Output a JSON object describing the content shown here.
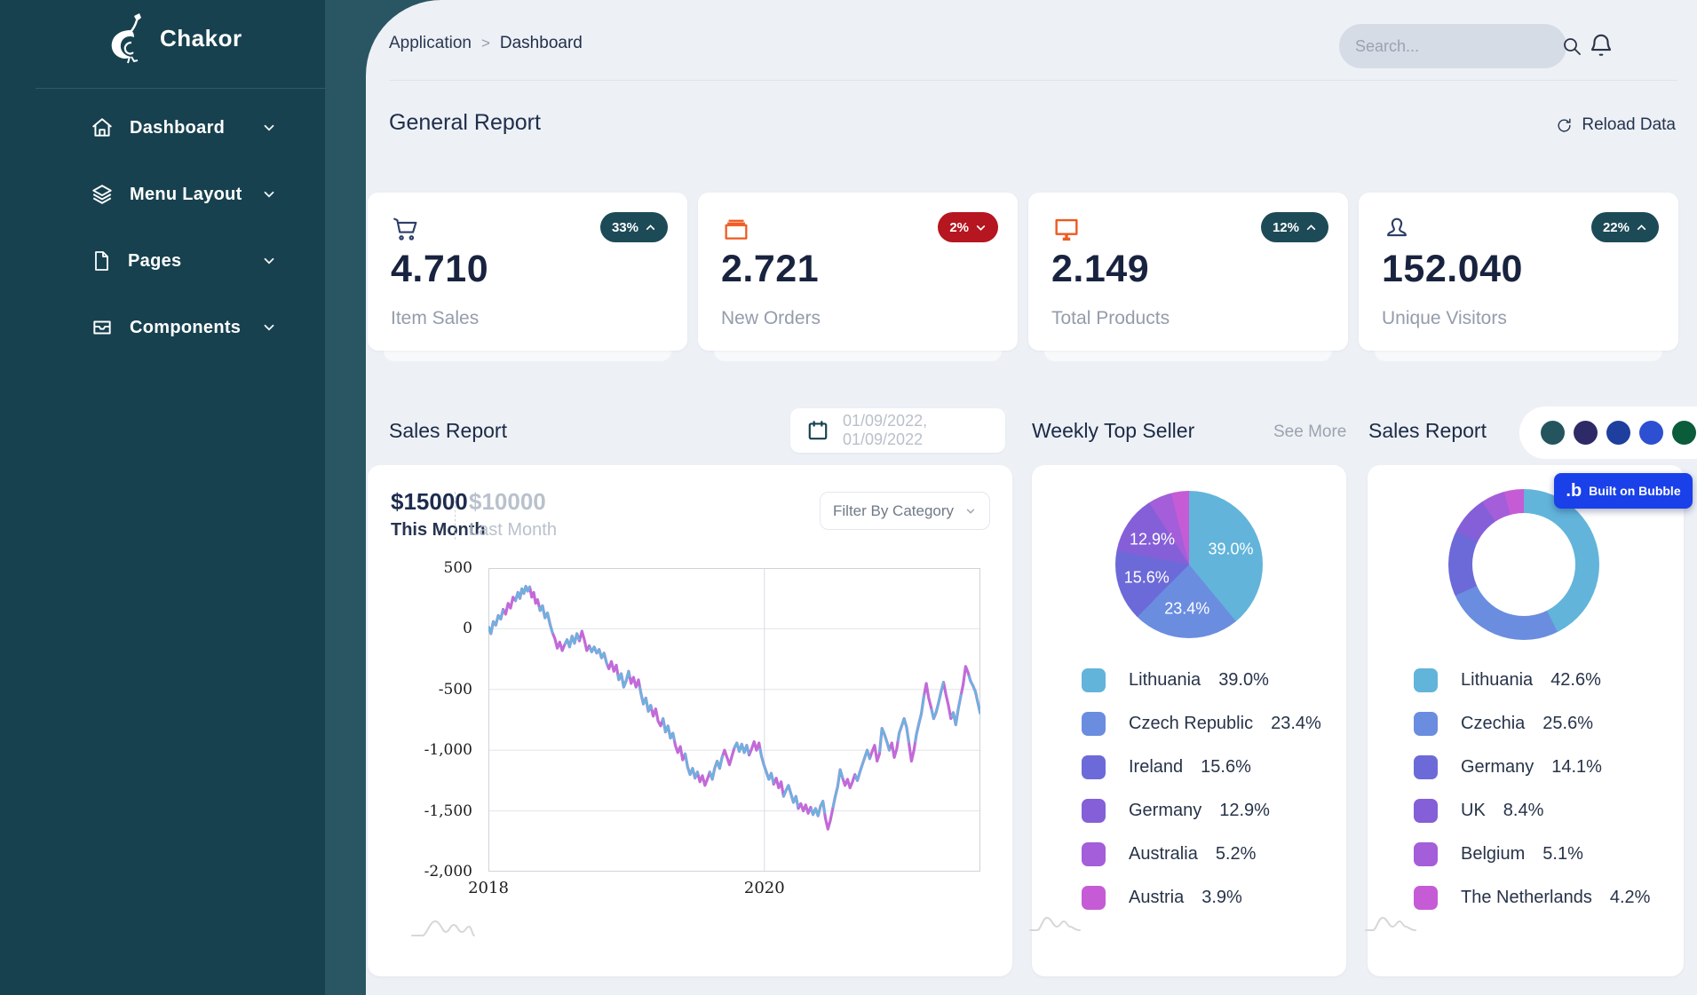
{
  "brand": {
    "name": "Chakor"
  },
  "sidebar": {
    "items": [
      {
        "label": "Dashboard"
      },
      {
        "label": "Menu Layout"
      },
      {
        "label": "Pages"
      },
      {
        "label": "Components"
      }
    ]
  },
  "topbar": {
    "breadcrumb_parent": "Application",
    "breadcrumb_separator": ">",
    "breadcrumb_current": "Dashboard",
    "search_placeholder": "Search..."
  },
  "general": {
    "title": "General Report",
    "reload_label": "Reload Data"
  },
  "stats": [
    {
      "value": "4.710",
      "label": "Item Sales",
      "badge": "33%",
      "trend": "up"
    },
    {
      "value": "2.721",
      "label": "New Orders",
      "badge": "2%",
      "trend": "down"
    },
    {
      "value": "2.149",
      "label": "Total Products",
      "badge": "12%",
      "trend": "up"
    },
    {
      "value": "152.040",
      "label": "Unique Visitors",
      "badge": "22%",
      "trend": "up"
    }
  ],
  "sales_section": {
    "title": "Sales Report",
    "date_range": "01/09/2022, 01/09/2022",
    "this_month_value": "$15000",
    "this_month_label": "This Month",
    "last_month_value": "$10000",
    "last_month_label": "Last Month",
    "filter_placeholder": "Filter By Category"
  },
  "weekly_section": {
    "title": "Weekly Top Seller",
    "see_more": "See More"
  },
  "donut_section": {
    "title": "Sales Report"
  },
  "theme_dots": [
    "#24555e",
    "#2e2a67",
    "#1e3f9e",
    "#2d4fd2",
    "#0a5c3a"
  ],
  "bubble_badge": {
    "label": "Built on Bubble",
    "logo": ".b"
  },
  "chart_data": [
    {
      "type": "line",
      "title": "Sales Report",
      "series": [
        {
          "name": "This Month",
          "color": "#6ab4dd"
        },
        {
          "name": "Last Month",
          "color": "#c26ad8"
        }
      ],
      "ylim": [
        -2000,
        500
      ],
      "yticks": [
        500,
        0,
        -500,
        -1000,
        -1500,
        -2000
      ],
      "xticks": [
        {
          "label": "2018",
          "f": 0.0
        },
        {
          "label": "2020",
          "f": 0.561
        }
      ],
      "grid": true,
      "points": [
        [
          0.0,
          20
        ],
        [
          0.005,
          -40
        ],
        [
          0.01,
          60
        ],
        [
          0.015,
          30
        ],
        [
          0.02,
          110
        ],
        [
          0.025,
          80
        ],
        [
          0.03,
          160
        ],
        [
          0.035,
          120
        ],
        [
          0.04,
          210
        ],
        [
          0.045,
          170
        ],
        [
          0.05,
          260
        ],
        [
          0.055,
          230
        ],
        [
          0.06,
          300
        ],
        [
          0.064,
          250
        ],
        [
          0.068,
          330
        ],
        [
          0.072,
          290
        ],
        [
          0.076,
          350
        ],
        [
          0.08,
          310
        ],
        [
          0.084,
          345
        ],
        [
          0.088,
          260
        ],
        [
          0.092,
          300
        ],
        [
          0.096,
          210
        ],
        [
          0.1,
          240
        ],
        [
          0.105,
          150
        ],
        [
          0.11,
          190
        ],
        [
          0.115,
          90
        ],
        [
          0.12,
          130
        ],
        [
          0.125,
          40
        ],
        [
          0.13,
          -30
        ],
        [
          0.135,
          -80
        ],
        [
          0.14,
          -160
        ],
        [
          0.145,
          -110
        ],
        [
          0.15,
          -180
        ],
        [
          0.155,
          -130
        ],
        [
          0.16,
          -90
        ],
        [
          0.165,
          -150
        ],
        [
          0.17,
          -60
        ],
        [
          0.175,
          -120
        ],
        [
          0.18,
          -40
        ],
        [
          0.185,
          -100
        ],
        [
          0.19,
          -20
        ],
        [
          0.195,
          -90
        ],
        [
          0.2,
          -180
        ],
        [
          0.205,
          -140
        ],
        [
          0.21,
          -190
        ],
        [
          0.215,
          -150
        ],
        [
          0.22,
          -200
        ],
        [
          0.225,
          -170
        ],
        [
          0.23,
          -240
        ],
        [
          0.235,
          -200
        ],
        [
          0.24,
          -280
        ],
        [
          0.245,
          -330
        ],
        [
          0.25,
          -270
        ],
        [
          0.255,
          -350
        ],
        [
          0.26,
          -300
        ],
        [
          0.265,
          -420
        ],
        [
          0.27,
          -370
        ],
        [
          0.275,
          -480
        ],
        [
          0.28,
          -430
        ],
        [
          0.285,
          -350
        ],
        [
          0.29,
          -450
        ],
        [
          0.295,
          -400
        ],
        [
          0.3,
          -480
        ],
        [
          0.305,
          -420
        ],
        [
          0.31,
          -530
        ],
        [
          0.315,
          -620
        ],
        [
          0.32,
          -570
        ],
        [
          0.325,
          -680
        ],
        [
          0.33,
          -630
        ],
        [
          0.335,
          -720
        ],
        [
          0.34,
          -660
        ],
        [
          0.345,
          -760
        ],
        [
          0.35,
          -800
        ],
        [
          0.355,
          -740
        ],
        [
          0.36,
          -850
        ],
        [
          0.365,
          -800
        ],
        [
          0.37,
          -900
        ],
        [
          0.375,
          -860
        ],
        [
          0.38,
          -960
        ],
        [
          0.385,
          -1020
        ],
        [
          0.39,
          -970
        ],
        [
          0.395,
          -1080
        ],
        [
          0.4,
          -1030
        ],
        [
          0.405,
          -1140
        ],
        [
          0.41,
          -1200
        ],
        [
          0.415,
          -1150
        ],
        [
          0.42,
          -1230
        ],
        [
          0.425,
          -1180
        ],
        [
          0.43,
          -1260
        ],
        [
          0.435,
          -1210
        ],
        [
          0.44,
          -1290
        ],
        [
          0.445,
          -1240
        ],
        [
          0.45,
          -1180
        ],
        [
          0.455,
          -1240
        ],
        [
          0.46,
          -1150
        ],
        [
          0.465,
          -1090
        ],
        [
          0.47,
          -1150
        ],
        [
          0.475,
          -1060
        ],
        [
          0.48,
          -1000
        ],
        [
          0.485,
          -1060
        ],
        [
          0.49,
          -1120
        ],
        [
          0.495,
          -1050
        ],
        [
          0.5,
          -980
        ],
        [
          0.505,
          -940
        ],
        [
          0.51,
          -1010
        ],
        [
          0.515,
          -950
        ],
        [
          0.52,
          -1020
        ],
        [
          0.525,
          -960
        ],
        [
          0.53,
          -1040
        ],
        [
          0.535,
          -990
        ],
        [
          0.54,
          -930
        ],
        [
          0.545,
          -1000
        ],
        [
          0.55,
          -940
        ],
        [
          0.555,
          -1050
        ],
        [
          0.56,
          -1120
        ],
        [
          0.565,
          -1180
        ],
        [
          0.57,
          -1240
        ],
        [
          0.575,
          -1190
        ],
        [
          0.58,
          -1280
        ],
        [
          0.585,
          -1230
        ],
        [
          0.59,
          -1310
        ],
        [
          0.595,
          -1260
        ],
        [
          0.6,
          -1380
        ],
        [
          0.605,
          -1330
        ],
        [
          0.61,
          -1290
        ],
        [
          0.615,
          -1360
        ],
        [
          0.62,
          -1430
        ],
        [
          0.625,
          -1380
        ],
        [
          0.63,
          -1480
        ],
        [
          0.635,
          -1440
        ],
        [
          0.64,
          -1500
        ],
        [
          0.645,
          -1450
        ],
        [
          0.65,
          -1520
        ],
        [
          0.655,
          -1470
        ],
        [
          0.66,
          -1530
        ],
        [
          0.665,
          -1480
        ],
        [
          0.67,
          -1540
        ],
        [
          0.675,
          -1460
        ],
        [
          0.68,
          -1420
        ],
        [
          0.685,
          -1560
        ],
        [
          0.69,
          -1650
        ],
        [
          0.695,
          -1580
        ],
        [
          0.7,
          -1480
        ],
        [
          0.705,
          -1380
        ],
        [
          0.71,
          -1300
        ],
        [
          0.715,
          -1160
        ],
        [
          0.72,
          -1230
        ],
        [
          0.725,
          -1290
        ],
        [
          0.73,
          -1240
        ],
        [
          0.735,
          -1310
        ],
        [
          0.74,
          -1260
        ],
        [
          0.745,
          -1200
        ],
        [
          0.75,
          -1250
        ],
        [
          0.755,
          -1180
        ],
        [
          0.76,
          -1120
        ],
        [
          0.765,
          -1060
        ],
        [
          0.77,
          -1000
        ],
        [
          0.775,
          -1070
        ],
        [
          0.78,
          -1010
        ],
        [
          0.785,
          -960
        ],
        [
          0.79,
          -1090
        ],
        [
          0.795,
          -1030
        ],
        [
          0.8,
          -820
        ],
        [
          0.805,
          -870
        ],
        [
          0.81,
          -930
        ],
        [
          0.815,
          -1000
        ],
        [
          0.82,
          -940
        ],
        [
          0.825,
          -1060
        ],
        [
          0.83,
          -990
        ],
        [
          0.835,
          -860
        ],
        [
          0.84,
          -800
        ],
        [
          0.845,
          -740
        ],
        [
          0.85,
          -810
        ],
        [
          0.855,
          -950
        ],
        [
          0.86,
          -1090
        ],
        [
          0.865,
          -1000
        ],
        [
          0.87,
          -870
        ],
        [
          0.875,
          -780
        ],
        [
          0.88,
          -700
        ],
        [
          0.885,
          -560
        ],
        [
          0.89,
          -450
        ],
        [
          0.895,
          -570
        ],
        [
          0.9,
          -650
        ],
        [
          0.905,
          -740
        ],
        [
          0.91,
          -690
        ],
        [
          0.915,
          -610
        ],
        [
          0.92,
          -520
        ],
        [
          0.925,
          -440
        ],
        [
          0.93,
          -540
        ],
        [
          0.935,
          -630
        ],
        [
          0.94,
          -740
        ],
        [
          0.945,
          -690
        ],
        [
          0.95,
          -790
        ],
        [
          0.955,
          -660
        ],
        [
          0.96,
          -560
        ],
        [
          0.965,
          -460
        ],
        [
          0.97,
          -310
        ],
        [
          0.975,
          -360
        ],
        [
          0.98,
          -430
        ],
        [
          0.985,
          -470
        ],
        [
          0.99,
          -520
        ],
        [
          0.995,
          -610
        ],
        [
          1.0,
          -700
        ]
      ]
    },
    {
      "type": "pie",
      "title": "Weekly Top Seller",
      "slices": [
        {
          "name": "Lithuania",
          "value": 39.0,
          "color": "#62b4da"
        },
        {
          "name": "Czech Republic",
          "value": 23.4,
          "color": "#6b8de0"
        },
        {
          "name": "Ireland",
          "value": 15.6,
          "color": "#6c6ad8"
        },
        {
          "name": "Germany",
          "value": 12.9,
          "color": "#855fd8"
        },
        {
          "name": "Australia",
          "value": 5.2,
          "color": "#a45ed9"
        },
        {
          "name": "Austria",
          "value": 3.9,
          "color": "#c55cd6"
        }
      ]
    },
    {
      "type": "donut",
      "title": "Sales Report",
      "slices": [
        {
          "name": "Lithuania",
          "value": 42.6,
          "color": "#62b4da"
        },
        {
          "name": "Czechia",
          "value": 25.6,
          "color": "#6b8de0"
        },
        {
          "name": "Germany",
          "value": 14.1,
          "color": "#6c6ad8"
        },
        {
          "name": "UK",
          "value": 8.4,
          "color": "#855fd8"
        },
        {
          "name": "Belgium",
          "value": 5.1,
          "color": "#a45ed9"
        },
        {
          "name": "The Netherlands",
          "value": 4.2,
          "color": "#c55cd6"
        }
      ]
    }
  ]
}
